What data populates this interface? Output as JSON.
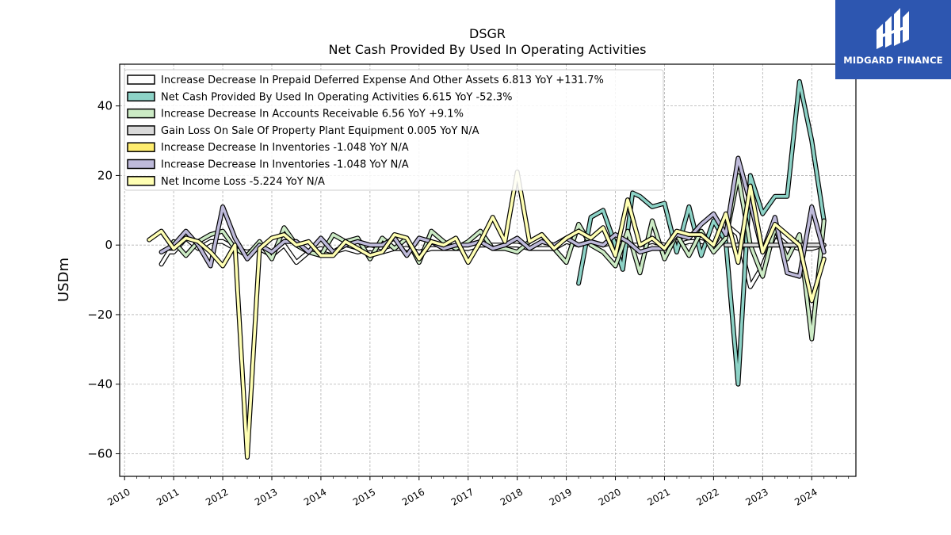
{
  "brand": {
    "name": "MIDGARD FINANCE"
  },
  "chart_data": {
    "type": "line",
    "title": "DSGR",
    "subtitle": "Net Cash Provided By Used In Operating Activities",
    "ylabel": "USDm",
    "xlim": [
      2009.9,
      2024.9
    ],
    "ylim": [
      -66.5,
      52
    ],
    "yticks": [
      -60,
      -40,
      -20,
      0,
      20,
      40
    ],
    "ytick_labels": [
      "−60",
      "−40",
      "−20",
      "0",
      "20",
      "40"
    ],
    "xticks": [
      2010,
      2011,
      2012,
      2013,
      2014,
      2015,
      2016,
      2017,
      2018,
      2019,
      2020,
      2021,
      2022,
      2023,
      2024
    ],
    "grid": true,
    "legend_position": "upper-left",
    "series": [
      {
        "name": "Increase Decrease In Prepaid Deferred Expense And Other Assets  6.813 YoY +131.7%",
        "color": "#ffffff",
        "points": [
          [
            2010.75,
            -5.5
          ],
          [
            2010.9,
            -2
          ],
          [
            2011.0,
            -2
          ],
          [
            2011.25,
            2
          ],
          [
            2011.5,
            -1
          ],
          [
            2011.75,
            1
          ],
          [
            2012.0,
            1
          ],
          [
            2012.25,
            -1
          ],
          [
            2012.5,
            -2
          ],
          [
            2012.75,
            -1
          ],
          [
            2013.0,
            -3
          ],
          [
            2013.25,
            0
          ],
          [
            2013.5,
            -5
          ],
          [
            2013.75,
            -2
          ],
          [
            2014.0,
            -1
          ],
          [
            2014.25,
            -2
          ],
          [
            2014.5,
            -1
          ],
          [
            2014.75,
            -2
          ],
          [
            2015.0,
            -1
          ],
          [
            2015.25,
            -2
          ],
          [
            2015.5,
            -1
          ],
          [
            2015.75,
            -1
          ],
          [
            2016.0,
            -2
          ],
          [
            2016.25,
            -1
          ],
          [
            2016.5,
            -1
          ],
          [
            2016.75,
            -1
          ],
          [
            2017.0,
            -1
          ],
          [
            2017.25,
            0
          ],
          [
            2017.5,
            0
          ],
          [
            2017.75,
            0
          ],
          [
            2018.0,
            0
          ],
          [
            2018.25,
            -1
          ],
          [
            2018.5,
            -1
          ],
          [
            2018.75,
            -1
          ],
          [
            2019.0,
            1
          ],
          [
            2019.25,
            0
          ],
          [
            2019.5,
            1
          ],
          [
            2019.75,
            0
          ],
          [
            2020.0,
            1
          ],
          [
            2020.25,
            0
          ],
          [
            2020.5,
            0
          ],
          [
            2020.75,
            1
          ],
          [
            2021.0,
            0
          ],
          [
            2021.25,
            0
          ],
          [
            2021.5,
            1
          ],
          [
            2021.75,
            1
          ],
          [
            2022.0,
            0
          ],
          [
            2022.25,
            6
          ],
          [
            2022.5,
            3
          ],
          [
            2022.75,
            -12
          ],
          [
            2023.0,
            -6
          ],
          [
            2023.25,
            3
          ],
          [
            2023.5,
            0
          ],
          [
            2023.75,
            -1
          ],
          [
            2024.0,
            -1
          ],
          [
            2024.25,
            0
          ]
        ]
      },
      {
        "name": "Net Cash Provided By Used In Operating Activities  6.615 YoY -52.3%",
        "color": "#8dd3c7",
        "points": [
          [
            2019.25,
            -11
          ],
          [
            2019.5,
            8
          ],
          [
            2019.75,
            10
          ],
          [
            2020.0,
            0
          ],
          [
            2020.15,
            -7
          ],
          [
            2020.35,
            15
          ],
          [
            2020.5,
            14
          ],
          [
            2020.75,
            11
          ],
          [
            2021.0,
            12
          ],
          [
            2021.25,
            -2
          ],
          [
            2021.5,
            11
          ],
          [
            2021.75,
            -3
          ],
          [
            2022.0,
            7
          ],
          [
            2022.25,
            1
          ],
          [
            2022.5,
            -40
          ],
          [
            2022.75,
            20
          ],
          [
            2023.0,
            9
          ],
          [
            2023.25,
            14
          ],
          [
            2023.5,
            14
          ],
          [
            2023.75,
            47
          ],
          [
            2024.0,
            30
          ],
          [
            2024.25,
            7
          ]
        ]
      },
      {
        "name": "Increase Decrease In Accounts Receivable  6.56 YoY +9.1%",
        "color": "#ccebc5",
        "points": [
          [
            2011.0,
            1
          ],
          [
            2011.25,
            -3
          ],
          [
            2011.5,
            1
          ],
          [
            2011.75,
            3
          ],
          [
            2012.0,
            4
          ],
          [
            2012.25,
            -1
          ],
          [
            2012.5,
            -3
          ],
          [
            2012.75,
            1
          ],
          [
            2013.0,
            -4
          ],
          [
            2013.25,
            5
          ],
          [
            2013.5,
            0
          ],
          [
            2013.75,
            -2
          ],
          [
            2014.0,
            -3
          ],
          [
            2014.25,
            3
          ],
          [
            2014.5,
            1
          ],
          [
            2014.75,
            2
          ],
          [
            2015.0,
            -4
          ],
          [
            2015.25,
            2
          ],
          [
            2015.5,
            -1
          ],
          [
            2015.75,
            2
          ],
          [
            2016.0,
            -5
          ],
          [
            2016.25,
            4
          ],
          [
            2016.5,
            1
          ],
          [
            2016.75,
            -1
          ],
          [
            2017.0,
            1
          ],
          [
            2017.25,
            4
          ],
          [
            2017.5,
            -1
          ],
          [
            2017.75,
            -1
          ],
          [
            2018.0,
            -2
          ],
          [
            2018.25,
            1
          ],
          [
            2018.5,
            3
          ],
          [
            2018.75,
            -1
          ],
          [
            2019.0,
            -5
          ],
          [
            2019.25,
            6
          ],
          [
            2019.5,
            0
          ],
          [
            2019.75,
            -2
          ],
          [
            2020.0,
            -6
          ],
          [
            2020.25,
            4
          ],
          [
            2020.5,
            -8
          ],
          [
            2020.75,
            7
          ],
          [
            2021.0,
            -4
          ],
          [
            2021.25,
            3
          ],
          [
            2021.5,
            -3
          ],
          [
            2021.75,
            4
          ],
          [
            2022.0,
            -2
          ],
          [
            2022.25,
            2
          ],
          [
            2022.5,
            20
          ],
          [
            2022.75,
            0
          ],
          [
            2023.0,
            -9
          ],
          [
            2023.25,
            5
          ],
          [
            2023.5,
            -4
          ],
          [
            2023.75,
            3
          ],
          [
            2024.0,
            -27
          ],
          [
            2024.25,
            7
          ]
        ]
      },
      {
        "name": "Gain Loss On Sale Of Property Plant Equipment  0.005 YoY N/A",
        "color": "#d9d9d9",
        "points": [
          [
            2022.25,
            0
          ],
          [
            2022.5,
            0
          ],
          [
            2022.75,
            0
          ],
          [
            2023.0,
            0
          ],
          [
            2023.25,
            0
          ],
          [
            2023.5,
            0
          ],
          [
            2023.75,
            0
          ],
          [
            2024.0,
            0
          ],
          [
            2024.25,
            0
          ]
        ]
      },
      {
        "name": "Increase Decrease In Inventories  -1.048 YoY N/A",
        "color": "#ffed6f",
        "points": []
      },
      {
        "name": "Increase Decrease In Inventories  -1.048 YoY N/A",
        "color": "#bebada",
        "points": [
          [
            2010.75,
            -2
          ],
          [
            2011.0,
            0
          ],
          [
            2011.25,
            4
          ],
          [
            2011.5,
            0
          ],
          [
            2011.75,
            -6
          ],
          [
            2012.0,
            11
          ],
          [
            2012.25,
            2
          ],
          [
            2012.5,
            -4
          ],
          [
            2012.75,
            0
          ],
          [
            2013.0,
            -2
          ],
          [
            2013.25,
            1
          ],
          [
            2013.5,
            1
          ],
          [
            2013.75,
            -2
          ],
          [
            2014.0,
            2
          ],
          [
            2014.25,
            -2
          ],
          [
            2014.5,
            0
          ],
          [
            2014.75,
            1
          ],
          [
            2015.0,
            0
          ],
          [
            2015.25,
            0
          ],
          [
            2015.5,
            2
          ],
          [
            2015.75,
            -3
          ],
          [
            2016.0,
            2
          ],
          [
            2016.25,
            1
          ],
          [
            2016.5,
            -1
          ],
          [
            2016.75,
            0
          ],
          [
            2017.0,
            0
          ],
          [
            2017.25,
            1
          ],
          [
            2017.5,
            -1
          ],
          [
            2017.75,
            0
          ],
          [
            2018.0,
            2
          ],
          [
            2018.25,
            -1
          ],
          [
            2018.5,
            1
          ],
          [
            2018.75,
            0
          ],
          [
            2019.0,
            2
          ],
          [
            2019.25,
            0
          ],
          [
            2019.5,
            1
          ],
          [
            2019.75,
            0
          ],
          [
            2020.0,
            3
          ],
          [
            2020.25,
            1
          ],
          [
            2020.5,
            -2
          ],
          [
            2020.75,
            -1
          ],
          [
            2021.0,
            -1
          ],
          [
            2021.25,
            3
          ],
          [
            2021.5,
            2
          ],
          [
            2021.75,
            6
          ],
          [
            2022.0,
            9
          ],
          [
            2022.25,
            3
          ],
          [
            2022.5,
            25
          ],
          [
            2022.75,
            12
          ],
          [
            2023.0,
            -2
          ],
          [
            2023.25,
            8
          ],
          [
            2023.5,
            -8
          ],
          [
            2023.75,
            -9
          ],
          [
            2024.0,
            11
          ],
          [
            2024.25,
            -2
          ]
        ]
      },
      {
        "name": "Net Income Loss  -5.224 YoY N/A",
        "color": "#ffffb3",
        "points": [
          [
            2010.5,
            1.5
          ],
          [
            2010.75,
            4
          ],
          [
            2011.0,
            -1
          ],
          [
            2011.25,
            2
          ],
          [
            2011.5,
            1
          ],
          [
            2011.75,
            -2
          ],
          [
            2012.0,
            -6
          ],
          [
            2012.25,
            0
          ],
          [
            2012.5,
            -61
          ],
          [
            2012.75,
            -1
          ],
          [
            2013.0,
            2
          ],
          [
            2013.25,
            3
          ],
          [
            2013.5,
            0
          ],
          [
            2013.75,
            1
          ],
          [
            2014.0,
            -3
          ],
          [
            2014.25,
            -3
          ],
          [
            2014.5,
            1
          ],
          [
            2014.75,
            -1
          ],
          [
            2015.0,
            -3
          ],
          [
            2015.25,
            -2
          ],
          [
            2015.5,
            3
          ],
          [
            2015.75,
            2
          ],
          [
            2016.0,
            -4
          ],
          [
            2016.25,
            1
          ],
          [
            2016.5,
            0
          ],
          [
            2016.75,
            2
          ],
          [
            2017.0,
            -5
          ],
          [
            2017.25,
            1
          ],
          [
            2017.5,
            8
          ],
          [
            2017.75,
            1
          ],
          [
            2018.0,
            21
          ],
          [
            2018.25,
            1
          ],
          [
            2018.5,
            3
          ],
          [
            2018.75,
            -1
          ],
          [
            2019.0,
            2
          ],
          [
            2019.25,
            4
          ],
          [
            2019.5,
            2
          ],
          [
            2019.75,
            5
          ],
          [
            2020.0,
            -3
          ],
          [
            2020.25,
            13
          ],
          [
            2020.5,
            0
          ],
          [
            2020.75,
            2
          ],
          [
            2021.0,
            -1
          ],
          [
            2021.25,
            4
          ],
          [
            2021.5,
            3
          ],
          [
            2021.75,
            3
          ],
          [
            2022.0,
            0
          ],
          [
            2022.25,
            9
          ],
          [
            2022.5,
            -5
          ],
          [
            2022.75,
            17
          ],
          [
            2023.0,
            -2
          ],
          [
            2023.25,
            6
          ],
          [
            2023.5,
            3
          ],
          [
            2023.75,
            0
          ],
          [
            2024.0,
            -16
          ],
          [
            2024.25,
            -4
          ]
        ]
      }
    ]
  }
}
